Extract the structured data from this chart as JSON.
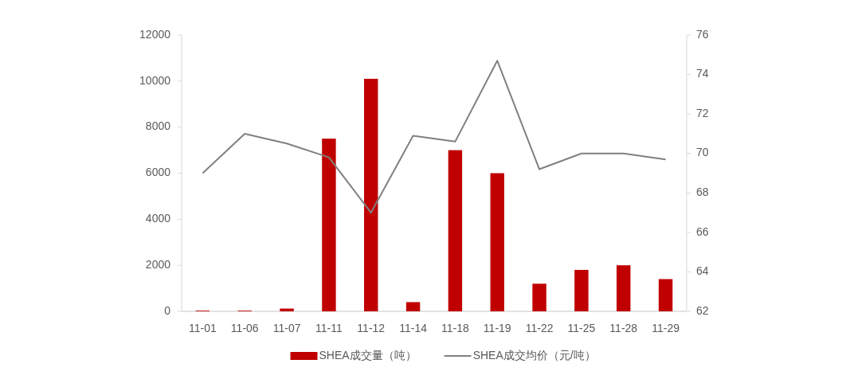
{
  "chart_data": {
    "type": "bar",
    "categories": [
      "11-01",
      "11-06",
      "11-07",
      "11-11",
      "11-12",
      "11-14",
      "11-18",
      "11-19",
      "11-22",
      "11-25",
      "11-28",
      "11-29"
    ],
    "series": [
      {
        "name": "SHEA成交量（吨）",
        "color": "#c00000",
        "values": [
          30,
          30,
          120,
          7500,
          10100,
          400,
          7000,
          6000,
          1200,
          1800,
          2000,
          1400
        ]
      },
      {
        "name": "SHEA成交均价（元/吨）",
        "type": "line",
        "axis": "y2",
        "color": "#808080",
        "values": [
          69.0,
          71.0,
          70.5,
          69.8,
          67.0,
          70.9,
          70.6,
          74.7,
          69.2,
          70.0,
          70.0,
          69.7
        ]
      }
    ],
    "ylim": [
      0,
      12000
    ],
    "yticks": [
      0,
      2000,
      4000,
      6000,
      8000,
      10000,
      12000
    ],
    "y2lim": [
      62,
      76
    ],
    "y2ticks": [
      62,
      64,
      66,
      68,
      70,
      72,
      74,
      76
    ],
    "legend": "bottom",
    "grid": false
  }
}
